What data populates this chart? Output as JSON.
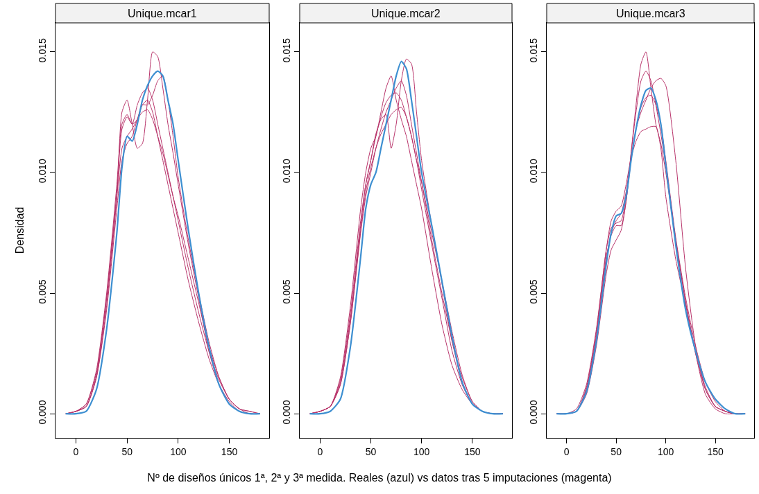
{
  "chart_data": [
    {
      "type": "line",
      "title": "Unique.mcar1",
      "ylabel": "Densidad",
      "xlim": [
        -20,
        189
      ],
      "xticks": [
        0,
        50,
        100,
        150
      ],
      "ylim": [
        -0.001,
        0.0162
      ],
      "yticks": [
        {
          "value": 0,
          "label": "0.000"
        },
        {
          "value": 0.005,
          "label": "0.005"
        },
        {
          "value": 0.01,
          "label": "0.010"
        },
        {
          "value": 0.015,
          "label": "0.015"
        }
      ],
      "x": [
        -10,
        0,
        10,
        20,
        30,
        40,
        45,
        50,
        55,
        60,
        65,
        70,
        75,
        80,
        85,
        90,
        95,
        100,
        110,
        120,
        130,
        140,
        150,
        160,
        170,
        180
      ],
      "series": [
        {
          "color": "#b8336a",
          "values": [
            0,
            0.0001,
            0.0003,
            0.0015,
            0.0045,
            0.009,
            0.0125,
            0.013,
            0.012,
            0.011,
            0.0112,
            0.013,
            0.015,
            0.0148,
            0.0135,
            0.012,
            0.0108,
            0.0095,
            0.007,
            0.0048,
            0.0026,
            0.0012,
            0.0004,
            0.0001,
            0,
            0
          ]
        },
        {
          "color": "#b8336a",
          "values": [
            0,
            0.0001,
            0.0004,
            0.0018,
            0.005,
            0.0095,
            0.012,
            0.0124,
            0.012,
            0.0122,
            0.0128,
            0.013,
            0.0125,
            0.0115,
            0.0105,
            0.0095,
            0.0085,
            0.0075,
            0.0055,
            0.0038,
            0.0023,
            0.0012,
            0.0005,
            0.0001,
            0,
            0
          ]
        },
        {
          "color": "#b8336a",
          "values": [
            0,
            0.0001,
            0.0003,
            0.0016,
            0.0048,
            0.0092,
            0.0118,
            0.0123,
            0.012,
            0.0128,
            0.0133,
            0.0135,
            0.013,
            0.012,
            0.011,
            0.01,
            0.009,
            0.008,
            0.006,
            0.0042,
            0.0026,
            0.0014,
            0.0006,
            0.0002,
            0,
            0
          ]
        },
        {
          "color": "#b8336a",
          "values": [
            0,
            0.0001,
            0.0003,
            0.0015,
            0.0043,
            0.0085,
            0.0105,
            0.0112,
            0.0115,
            0.0122,
            0.0128,
            0.0128,
            0.0132,
            0.0138,
            0.014,
            0.013,
            0.0115,
            0.0098,
            0.0072,
            0.005,
            0.003,
            0.0015,
            0.0006,
            0.0002,
            0.0001,
            0
          ]
        },
        {
          "color": "#b8336a",
          "values": [
            0,
            0.0001,
            0.0004,
            0.0017,
            0.0048,
            0.009,
            0.011,
            0.0115,
            0.0118,
            0.0122,
            0.0125,
            0.0126,
            0.0122,
            0.0115,
            0.0108,
            0.0099,
            0.009,
            0.0082,
            0.0064,
            0.0046,
            0.0028,
            0.0015,
            0.0006,
            0.0002,
            0.0001,
            0
          ]
        },
        {
          "color": "#3d8fd1",
          "values": [
            0,
            0,
            0.0001,
            0.001,
            0.0035,
            0.0075,
            0.0102,
            0.0115,
            0.0113,
            0.012,
            0.013,
            0.0136,
            0.014,
            0.0142,
            0.014,
            0.013,
            0.012,
            0.0105,
            0.0076,
            0.005,
            0.0028,
            0.0012,
            0.0004,
            0.0001,
            0,
            0
          ]
        }
      ]
    },
    {
      "type": "line",
      "title": "Unique.mcar2",
      "xlabel": "Nº de diseños únicos 1ª, 2ª y 3ª medida. Reales (azul) vs datos tras 5 imputaciones (magenta)",
      "xlim": [
        -20,
        189
      ],
      "xticks": [
        0,
        50,
        100,
        150
      ],
      "ylim": [
        -0.001,
        0.0162
      ],
      "yticks": [
        {
          "value": 0,
          "label": "0.000"
        },
        {
          "value": 0.005,
          "label": "0.005"
        },
        {
          "value": 0.01,
          "label": "0.010"
        },
        {
          "value": 0.015,
          "label": "0.015"
        }
      ],
      "x": [
        -10,
        0,
        10,
        20,
        30,
        40,
        45,
        50,
        55,
        60,
        65,
        70,
        75,
        80,
        85,
        90,
        95,
        100,
        110,
        120,
        130,
        140,
        150,
        160,
        170,
        180
      ],
      "series": [
        {
          "color": "#b8336a",
          "values": [
            0,
            0.0001,
            0.0003,
            0.0014,
            0.0042,
            0.008,
            0.0095,
            0.0105,
            0.0116,
            0.0122,
            0.0124,
            0.011,
            0.012,
            0.0138,
            0.0147,
            0.0145,
            0.0125,
            0.0105,
            0.0078,
            0.0054,
            0.003,
            0.0015,
            0.0005,
            0.0001,
            0,
            0
          ]
        },
        {
          "color": "#b8336a",
          "values": [
            0,
            0.0001,
            0.0003,
            0.0015,
            0.0045,
            0.0085,
            0.01,
            0.011,
            0.0115,
            0.0125,
            0.0135,
            0.014,
            0.013,
            0.0122,
            0.0115,
            0.0105,
            0.0095,
            0.0085,
            0.006,
            0.0037,
            0.002,
            0.001,
            0.0004,
            0.0001,
            0,
            0
          ]
        },
        {
          "color": "#b8336a",
          "values": [
            0,
            0.0001,
            0.0003,
            0.0013,
            0.004,
            0.0078,
            0.0095,
            0.0105,
            0.0115,
            0.0123,
            0.0129,
            0.0132,
            0.0133,
            0.013,
            0.0123,
            0.0115,
            0.0105,
            0.0093,
            0.007,
            0.0048,
            0.0026,
            0.0012,
            0.0004,
            0.0001,
            0,
            0
          ]
        },
        {
          "color": "#b8336a",
          "values": [
            0,
            0.0001,
            0.0003,
            0.0012,
            0.0038,
            0.0075,
            0.009,
            0.01,
            0.011,
            0.0118,
            0.0125,
            0.013,
            0.0135,
            0.0138,
            0.0132,
            0.012,
            0.0108,
            0.0096,
            0.0072,
            0.005,
            0.003,
            0.0013,
            0.0004,
            0.0001,
            0,
            0
          ]
        },
        {
          "color": "#b8336a",
          "values": [
            0,
            0.0001,
            0.0003,
            0.0012,
            0.0038,
            0.0076,
            0.0092,
            0.0102,
            0.011,
            0.0116,
            0.012,
            0.0124,
            0.0126,
            0.0127,
            0.0123,
            0.0115,
            0.0105,
            0.0096,
            0.0075,
            0.0055,
            0.0034,
            0.0016,
            0.0005,
            0.0001,
            0,
            0
          ]
        },
        {
          "color": "#3d8fd1",
          "values": [
            0,
            0,
            0.0001,
            0.0006,
            0.0028,
            0.0065,
            0.0085,
            0.0095,
            0.01,
            0.011,
            0.012,
            0.013,
            0.014,
            0.0146,
            0.0143,
            0.013,
            0.0115,
            0.01,
            0.0078,
            0.0055,
            0.0032,
            0.0013,
            0.0004,
            0.0001,
            0,
            0
          ]
        }
      ]
    },
    {
      "type": "line",
      "title": "Unique.mcar3",
      "xlim": [
        -20,
        189
      ],
      "xticks": [
        0,
        50,
        100,
        150
      ],
      "ylim": [
        -0.001,
        0.0162
      ],
      "yticks": [
        {
          "value": 0,
          "label": "0.000"
        },
        {
          "value": 0.005,
          "label": "0.005"
        },
        {
          "value": 0.01,
          "label": "0.010"
        },
        {
          "value": 0.015,
          "label": "0.015"
        }
      ],
      "x": [
        -10,
        0,
        10,
        20,
        30,
        40,
        45,
        50,
        55,
        60,
        65,
        70,
        75,
        80,
        85,
        90,
        95,
        100,
        110,
        120,
        130,
        140,
        150,
        160,
        170,
        180
      ],
      "series": [
        {
          "color": "#b8336a",
          "values": [
            0,
            0,
            0.0001,
            0.001,
            0.0032,
            0.0065,
            0.0074,
            0.0078,
            0.0078,
            0.0088,
            0.0108,
            0.0128,
            0.0145,
            0.015,
            0.0135,
            0.012,
            0.0112,
            0.01,
            0.0072,
            0.0046,
            0.0026,
            0.0011,
            0.0003,
            0.0001,
            0,
            0
          ]
        },
        {
          "color": "#b8336a",
          "values": [
            0,
            0,
            0.0001,
            0.0011,
            0.0034,
            0.0068,
            0.0077,
            0.0079,
            0.008,
            0.009,
            0.0108,
            0.0125,
            0.0138,
            0.0142,
            0.0138,
            0.0128,
            0.0116,
            0.0103,
            0.0072,
            0.0046,
            0.0025,
            0.001,
            0.0003,
            0.0001,
            0,
            0
          ]
        },
        {
          "color": "#b8336a",
          "values": [
            0,
            0,
            0.0001,
            0.0008,
            0.0028,
            0.0058,
            0.0068,
            0.0072,
            0.0076,
            0.0088,
            0.0105,
            0.0118,
            0.0125,
            0.013,
            0.0135,
            0.0138,
            0.0139,
            0.0136,
            0.0105,
            0.006,
            0.0028,
            0.001,
            0.0003,
            0.0001,
            0,
            0
          ]
        },
        {
          "color": "#b8336a",
          "values": [
            0,
            0,
            0.0002,
            0.0012,
            0.0035,
            0.0068,
            0.008,
            0.0084,
            0.0086,
            0.0095,
            0.0106,
            0.0113,
            0.0117,
            0.0118,
            0.0119,
            0.0119,
            0.011,
            0.009,
            0.0064,
            0.0045,
            0.0025,
            0.0008,
            0.0002,
            0,
            0,
            0
          ]
        },
        {
          "color": "#b8336a",
          "values": [
            0,
            0,
            0.0001,
            0.001,
            0.0032,
            0.0064,
            0.0075,
            0.008,
            0.0083,
            0.0092,
            0.0106,
            0.0118,
            0.0127,
            0.0131,
            0.0132,
            0.0128,
            0.012,
            0.0105,
            0.0073,
            0.0048,
            0.0028,
            0.0013,
            0.0005,
            0.0001,
            0,
            0
          ]
        },
        {
          "color": "#3d8fd1",
          "values": [
            0,
            0,
            0.0001,
            0.0009,
            0.003,
            0.0062,
            0.0075,
            0.0082,
            0.0083,
            0.009,
            0.0105,
            0.0118,
            0.0128,
            0.0134,
            0.0135,
            0.013,
            0.012,
            0.0103,
            0.007,
            0.0043,
            0.0026,
            0.0013,
            0.0006,
            0.0002,
            0,
            0
          ]
        }
      ]
    }
  ]
}
